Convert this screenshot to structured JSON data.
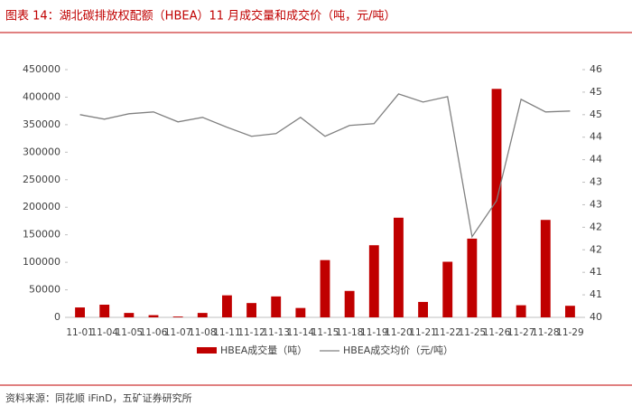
{
  "chart_data": {
    "type": "bar_line",
    "title": "图表 14：湖北碳排放权配额（HBEA）11 月成交量和成交价（吨，元/吨）",
    "source": "资料来源：同花顺 iFinD，五矿证券研究所",
    "categories": [
      "11-01",
      "11-04",
      "11-05",
      "11-06",
      "11-07",
      "11-08",
      "11-11",
      "11-12",
      "11-13",
      "11-14",
      "11-15",
      "11-18",
      "11-19",
      "11-20",
      "11-21",
      "11-22",
      "11-25",
      "11-26",
      "11-27",
      "11-28",
      "11-29"
    ],
    "series": [
      {
        "name": "HBEA成交量（吨）",
        "type": "bar",
        "color": "#c00000",
        "values": [
          18000,
          23000,
          8000,
          4000,
          1500,
          8000,
          40000,
          26000,
          38000,
          17000,
          104000,
          48000,
          131000,
          181000,
          28000,
          101000,
          143000,
          415000,
          22000,
          177000,
          21000
        ]
      },
      {
        "name": "HBEA成交均价（元/吨）",
        "type": "line",
        "axis": "y2",
        "color": "#808080",
        "values": [
          44.5,
          44.4,
          44.52,
          44.56,
          44.34,
          44.44,
          44.22,
          44.02,
          44.08,
          44.44,
          44.02,
          44.26,
          44.3,
          44.96,
          44.78,
          44.9,
          41.79,
          42.59,
          44.84,
          44.56,
          44.58
        ]
      }
    ],
    "ylim": [
      0,
      450000
    ],
    "yticks": [
      0,
      50000,
      100000,
      150000,
      200000,
      250000,
      300000,
      350000,
      400000,
      450000
    ],
    "y2lim": [
      40,
      45.5
    ],
    "y2ticks": [
      40,
      {
        "value": 40.5,
        "label": "41"
      },
      41,
      {
        "value": 41.5,
        "label": "42"
      },
      42,
      {
        "value": 42.5,
        "label": "43"
      },
      43,
      {
        "value": 43.5,
        "label": "44"
      },
      44,
      {
        "value": 44.5,
        "label": "45"
      },
      45,
      {
        "value": 45.5,
        "label": "46"
      }
    ]
  }
}
